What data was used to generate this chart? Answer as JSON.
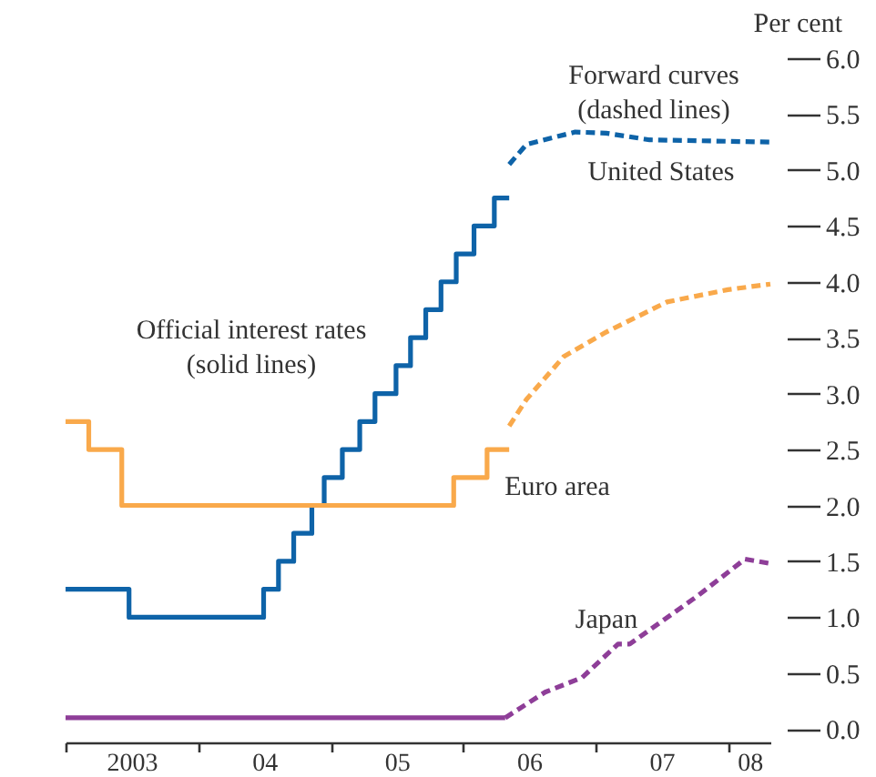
{
  "chart_data": {
    "type": "line",
    "ylabel": "Per cent",
    "annotations": [
      "Official interest rates\n(solid lines)",
      "Forward curves\n(dashed lines)"
    ],
    "xlim": [
      "2003-01-01",
      "2008-04-27"
    ],
    "xticks": [
      {
        "value": "2003-01-01",
        "label": null
      },
      {
        "value": "2003-07-02",
        "label": "2003"
      },
      {
        "value": "2004-01-01",
        "label": null
      },
      {
        "value": "2004-07-02",
        "label": "04"
      },
      {
        "value": "2005-01-01",
        "label": null
      },
      {
        "value": "2005-07-02",
        "label": "05"
      },
      {
        "value": "2006-01-01",
        "label": null
      },
      {
        "value": "2006-07-02",
        "label": "06"
      },
      {
        "value": "2007-01-01",
        "label": null
      },
      {
        "value": "2007-07-02",
        "label": "07"
      },
      {
        "value": "2008-01-01",
        "label": null
      },
      {
        "value": "2008-03-01",
        "label": "08"
      }
    ],
    "ylim": [
      -0.12,
      6
    ],
    "yticks": [
      {
        "value": 0,
        "label": "0.0"
      },
      0.5,
      {
        "value": 1,
        "label": "1.0"
      },
      1.5,
      {
        "value": 2,
        "label": "2.0"
      },
      2.5,
      {
        "value": 3,
        "label": "3.0"
      },
      3.5,
      {
        "value": 4,
        "label": "4.0"
      },
      4.5,
      {
        "value": 5,
        "label": "5.0"
      },
      5.5,
      {
        "value": 6,
        "label": "6.0"
      }
    ],
    "series": [
      {
        "name": "United States",
        "type": "step",
        "line_style": "solid",
        "color": "#0e63a8",
        "x": [
          "2003-01-01",
          "2003-06-25",
          "2004-06-30",
          "2004-08-10",
          "2004-09-21",
          "2004-11-10",
          "2004-12-14",
          "2005-02-02",
          "2005-03-22",
          "2005-05-03",
          "2005-06-30",
          "2005-08-09",
          "2005-09-20",
          "2005-11-01",
          "2005-12-13",
          "2006-01-31",
          "2006-03-28",
          "2006-05-08"
        ],
        "values": [
          1.25,
          1.0,
          1.25,
          1.5,
          1.75,
          2.0,
          2.25,
          2.5,
          2.75,
          3.0,
          3.25,
          3.5,
          3.75,
          4.0,
          4.25,
          4.5,
          4.75,
          4.75
        ]
      },
      {
        "name": "Euro area",
        "type": "step",
        "line_style": "solid",
        "color": "#f9a94b",
        "x": [
          "2003-01-01",
          "2003-03-06",
          "2003-06-05",
          "2005-12-06",
          "2006-03-08",
          "2006-05-08"
        ],
        "values": [
          2.75,
          2.5,
          2.0,
          2.25,
          2.5,
          2.5
        ]
      },
      {
        "name": "Japan",
        "type": "step",
        "line_style": "solid",
        "color": "#8e3e98",
        "x": [
          "2003-01-01",
          "2006-04-27"
        ],
        "values": [
          0.1,
          0.1
        ]
      },
      {
        "type": "line",
        "line_style": "dashed",
        "color": "#0e63a8",
        "x": [
          "2006-05-08",
          "2006-06-25",
          "2006-11-06",
          "2007-01-30",
          "2007-05-30",
          "2008-04-27"
        ],
        "values": [
          5.05,
          5.23,
          5.34,
          5.33,
          5.27,
          5.25
        ]
      },
      {
        "type": "line",
        "line_style": "dashed",
        "color": "#f9a94b",
        "x": [
          "2006-05-08",
          "2006-06-25",
          "2006-10-05",
          "2007-01-30",
          "2007-07-17",
          "2008-01-01",
          "2008-04-27"
        ],
        "values": [
          2.71,
          2.95,
          3.33,
          3.55,
          3.82,
          3.93,
          3.98
        ]
      },
      {
        "type": "line",
        "line_style": "dashed",
        "color": "#8e3e98",
        "x": [
          "2006-04-27",
          "2006-08-15",
          "2006-11-25",
          "2007-03-04",
          "2007-04-05",
          "2007-10-09",
          "2008-02-17",
          "2008-04-27"
        ],
        "values": [
          0.1,
          0.33,
          0.46,
          0.76,
          0.76,
          1.19,
          1.52,
          1.48
        ]
      }
    ]
  }
}
